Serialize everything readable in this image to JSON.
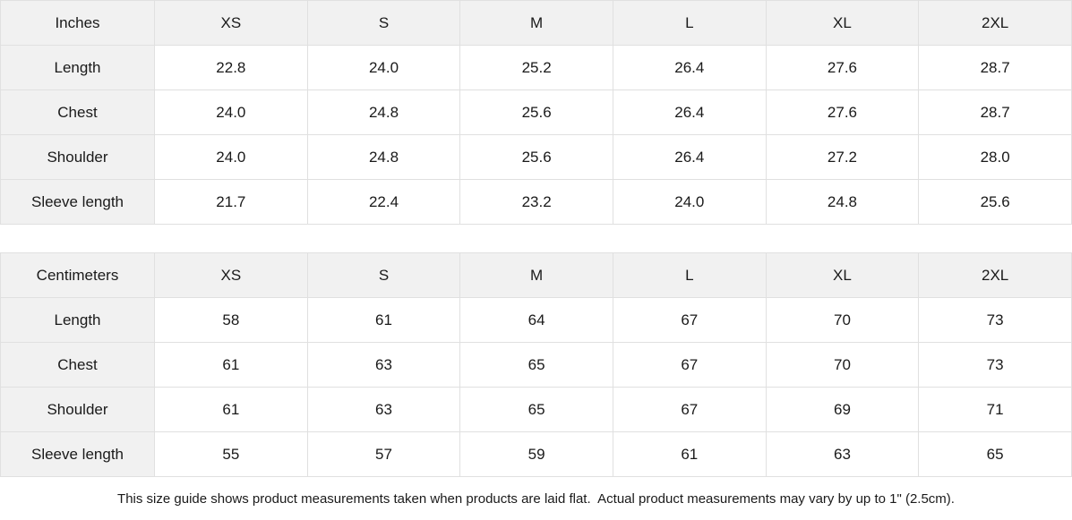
{
  "colors": {
    "header_bg": "#f1f1f1",
    "cell_bg": "#ffffff",
    "border": "#e0e0e0",
    "text": "#1a1a1a"
  },
  "tables": [
    {
      "unit_label": "Inches",
      "columns": [
        "XS",
        "S",
        "M",
        "L",
        "XL",
        "2XL"
      ],
      "rows": [
        {
          "label": "Length",
          "values": [
            "22.8",
            "24.0",
            "25.2",
            "26.4",
            "27.6",
            "28.7"
          ]
        },
        {
          "label": "Chest",
          "values": [
            "24.0",
            "24.8",
            "25.6",
            "26.4",
            "27.6",
            "28.7"
          ]
        },
        {
          "label": "Shoulder",
          "values": [
            "24.0",
            "24.8",
            "25.6",
            "26.4",
            "27.2",
            "28.0"
          ]
        },
        {
          "label": "Sleeve length",
          "values": [
            "21.7",
            "22.4",
            "23.2",
            "24.0",
            "24.8",
            "25.6"
          ]
        }
      ]
    },
    {
      "unit_label": "Centimeters",
      "columns": [
        "XS",
        "S",
        "M",
        "L",
        "XL",
        "2XL"
      ],
      "rows": [
        {
          "label": "Length",
          "values": [
            "58",
            "61",
            "64",
            "67",
            "70",
            "73"
          ]
        },
        {
          "label": "Chest",
          "values": [
            "61",
            "63",
            "65",
            "67",
            "70",
            "73"
          ]
        },
        {
          "label": "Shoulder",
          "values": [
            "61",
            "63",
            "65",
            "67",
            "69",
            "71"
          ]
        },
        {
          "label": "Sleeve length",
          "values": [
            "55",
            "57",
            "59",
            "61",
            "63",
            "65"
          ]
        }
      ]
    }
  ],
  "footer": {
    "note": "This size guide shows product measurements taken when products are laid flat.  Actual product measurements may vary by up to 1\" (2.5cm)."
  }
}
